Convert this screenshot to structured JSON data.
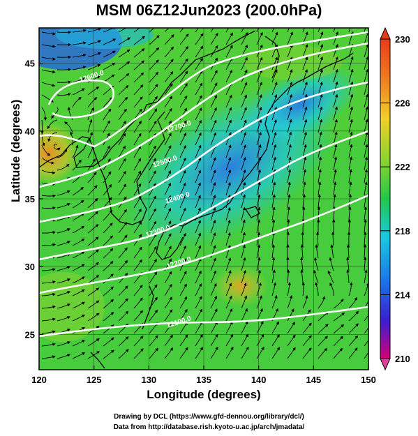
{
  "title": "MSM 06Z12Jun2023 (200.0hPa)",
  "chart_data": {
    "type": "heatmap",
    "xlabel": "Longitude (degrees)",
    "ylabel": "Latitude  (degrees)",
    "xlim": [
      120,
      150
    ],
    "ylim": [
      22.4,
      47.6
    ],
    "x_ticks": [
      "120",
      "125",
      "130",
      "135",
      "140",
      "145",
      "150"
    ],
    "y_ticks": [
      "25",
      "30",
      "35",
      "40",
      "45"
    ],
    "colorbar": {
      "min": 210,
      "max": 230,
      "labels": [
        "230",
        "226",
        "222",
        "218",
        "214",
        "210"
      ],
      "colors": [
        "#d40078",
        "#3a1fd0",
        "#1a7ae8",
        "#19c8e0",
        "#22c84a",
        "#8ad22e",
        "#f0d02a",
        "#f07a20",
        "#e83c18"
      ]
    },
    "contours": [
      {
        "label": "12100.0"
      },
      {
        "label": "12200.0"
      },
      {
        "label": "12300.0"
      },
      {
        "label": "12400.0"
      },
      {
        "label": "12500.0"
      },
      {
        "label": "12600.0"
      },
      {
        "label": "12700.0"
      }
    ],
    "grid": true
  },
  "credits": {
    "line1": "Drawing by DCL (https://www.gfd-dennou.org/library/dcl/)",
    "line2": "Data from http://database.rish.kyoto-u.ac.jp/arch/jmadata/"
  }
}
